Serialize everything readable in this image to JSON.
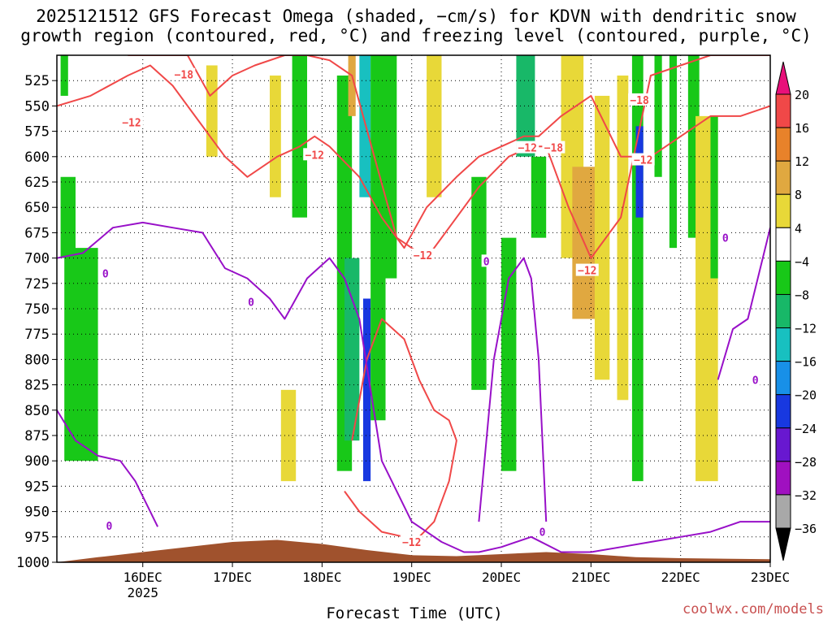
{
  "title_line1": "2025121512 GFS Forecast Omega (shaded, −cm/s) for KDVN with dendritic snow",
  "title_line2": "growth region (contoured, red, °C) and freezing level (contoured, purple, °C)",
  "credit": "coolwx.com/models",
  "chart_data": {
    "type": "heatmap",
    "title": "2025121512 GFS Forecast Omega (shaded, −cm/s) for KDVN with dendritic snow growth region (contoured, red, °C) and freezing level (contoured, purple, °C)",
    "xlabel": "Forecast Time (UTC)",
    "ylabel": "",
    "x_ticks": [
      "16DEC",
      "17DEC",
      "18DEC",
      "19DEC",
      "20DEC",
      "21DEC",
      "22DEC",
      "23DEC"
    ],
    "x_year_label": "2025",
    "xlim_hours": [
      -11,
      180
    ],
    "y_ticks": [
      525,
      550,
      575,
      600,
      625,
      650,
      675,
      700,
      725,
      750,
      775,
      800,
      825,
      850,
      875,
      900,
      925,
      950,
      975,
      1000
    ],
    "ylim": [
      500,
      1000
    ],
    "colorbar": {
      "tick_labels": [
        "20",
        "16",
        "12",
        "8",
        "4",
        "−4",
        "−8",
        "−12",
        "−16",
        "−20",
        "−24",
        "−28",
        "−32",
        "−36"
      ],
      "bins": [
        {
          "range": "> 20",
          "color": "#e8107a"
        },
        {
          "range": "16 to 20",
          "color": "#f04848"
        },
        {
          "range": "12 to 16",
          "color": "#e8822a"
        },
        {
          "range": "8 to 12",
          "color": "#e0a840"
        },
        {
          "range": "4 to 8",
          "color": "#e8d838"
        },
        {
          "range": "-4 to 4",
          "color": "#ffffff"
        },
        {
          "range": "-8 to -4",
          "color": "#18c818"
        },
        {
          "range": "-12 to -8",
          "color": "#18b868"
        },
        {
          "range": "-16 to -12",
          "color": "#18c0c0"
        },
        {
          "range": "-20 to -16",
          "color": "#1890e8"
        },
        {
          "range": "-24 to -20",
          "color": "#1838e0"
        },
        {
          "range": "-28 to -24",
          "color": "#6818d0"
        },
        {
          "range": "-32 to -28",
          "color": "#a010c0"
        },
        {
          "range": "-36 to -32",
          "color": "#a8a8a8"
        },
        {
          "range": "< -36",
          "color": "#000000"
        }
      ]
    },
    "shaded_regions": [
      {
        "t": [
          -10,
          -8
        ],
        "p": [
          500,
          540
        ],
        "value": -6
      },
      {
        "t": [
          -9,
          0
        ],
        "p": [
          690,
          900
        ],
        "value": -6
      },
      {
        "t": [
          -10,
          -6
        ],
        "p": [
          620,
          700
        ],
        "value": -6
      },
      {
        "t": [
          29,
          32
        ],
        "p": [
          510,
          600
        ],
        "value": 6
      },
      {
        "t": [
          46,
          49
        ],
        "p": [
          520,
          640
        ],
        "value": 6
      },
      {
        "t": [
          49,
          53
        ],
        "p": [
          830,
          920
        ],
        "value": 6
      },
      {
        "t": [
          52,
          56
        ],
        "p": [
          500,
          660
        ],
        "value": -6
      },
      {
        "t": [
          64,
          68
        ],
        "p": [
          520,
          910
        ],
        "value": -6
      },
      {
        "t": [
          67,
          69
        ],
        "p": [
          500,
          560
        ],
        "value": 10
      },
      {
        "t": [
          66,
          70
        ],
        "p": [
          700,
          880
        ],
        "value": -10
      },
      {
        "t": [
          70,
          73
        ],
        "p": [
          500,
          640
        ],
        "value": -14
      },
      {
        "t": [
          71,
          73
        ],
        "p": [
          740,
          920
        ],
        "value": -22
      },
      {
        "t": [
          73,
          77
        ],
        "p": [
          500,
          860
        ],
        "value": -6
      },
      {
        "t": [
          76,
          80
        ],
        "p": [
          500,
          720
        ],
        "value": -6
      },
      {
        "t": [
          88,
          92
        ],
        "p": [
          500,
          640
        ],
        "value": 6
      },
      {
        "t": [
          100,
          104
        ],
        "p": [
          620,
          830
        ],
        "value": -6
      },
      {
        "t": [
          108,
          112
        ],
        "p": [
          680,
          910
        ],
        "value": -6
      },
      {
        "t": [
          112,
          117
        ],
        "p": [
          500,
          600
        ],
        "value": -12
      },
      {
        "t": [
          116,
          120
        ],
        "p": [
          600,
          680
        ],
        "value": -6
      },
      {
        "t": [
          124,
          130
        ],
        "p": [
          500,
          700
        ],
        "value": 6
      },
      {
        "t": [
          127,
          134
        ],
        "p": [
          610,
          760
        ],
        "value": 10
      },
      {
        "t": [
          133,
          137
        ],
        "p": [
          540,
          820
        ],
        "value": 6
      },
      {
        "t": [
          139,
          142
        ],
        "p": [
          520,
          840
        ],
        "value": 6
      },
      {
        "t": [
          143,
          146
        ],
        "p": [
          500,
          920
        ],
        "value": -6
      },
      {
        "t": [
          144,
          146
        ],
        "p": [
          570,
          660
        ],
        "value": -22
      },
      {
        "t": [
          149,
          151
        ],
        "p": [
          500,
          620
        ],
        "value": -6
      },
      {
        "t": [
          153,
          155
        ],
        "p": [
          500,
          690
        ],
        "value": -6
      },
      {
        "t": [
          158,
          161
        ],
        "p": [
          500,
          680
        ],
        "value": -6
      },
      {
        "t": [
          160,
          166
        ],
        "p": [
          560,
          920
        ],
        "value": 6
      },
      {
        "t": [
          164,
          166
        ],
        "p": [
          560,
          720
        ],
        "value": -6
      }
    ],
    "dendritic_contours": [
      {
        "label": "-12",
        "t": [
          -11,
          -2,
          8,
          14,
          20,
          26,
          34,
          40,
          48,
          54,
          58,
          62,
          70,
          76,
          82,
          88,
          96,
          102,
          108,
          114,
          118,
          124,
          132,
          140,
          148,
          156,
          164,
          172,
          180
        ],
        "p": [
          550,
          540,
          520,
          510,
          530,
          560,
          600,
          620,
          600,
          590,
          580,
          590,
          620,
          660,
          690,
          650,
          620,
          600,
          590,
          580,
          580,
          560,
          540,
          600,
          600,
          580,
          560,
          560,
          550
        ]
      },
      {
        "label": "-18",
        "t": [
          8,
          16,
          24,
          30,
          36,
          42,
          50,
          56,
          62,
          68,
          74,
          80,
          88,
          94,
          102,
          110,
          116,
          120,
          126,
          132,
          140,
          148,
          156,
          164,
          172,
          180
        ],
        "p": [
          500,
          500,
          500,
          540,
          520,
          510,
          500,
          500,
          505,
          520,
          600,
          680,
          700,
          670,
          630,
          600,
          590,
          590,
          650,
          700,
          660,
          520,
          510,
          500,
          500,
          500
        ]
      },
      {
        "label": "-12",
        "t": [
          66,
          70,
          76,
          82,
          86,
          90,
          94,
          96,
          94,
          90,
          86,
          82,
          76,
          72,
          68
        ],
        "p": [
          930,
          950,
          970,
          975,
          975,
          960,
          920,
          880,
          860,
          850,
          820,
          780,
          760,
          800,
          880
        ]
      }
    ],
    "freezing_contours": [
      {
        "label": "0",
        "t": [
          -11,
          -4,
          4,
          12,
          20,
          28,
          34,
          40,
          46,
          50,
          56,
          62,
          66,
          70,
          76,
          84,
          92,
          98,
          102,
          108,
          116,
          124,
          132,
          140,
          148,
          156,
          164,
          172,
          178,
          180
        ],
        "p": [
          700,
          695,
          670,
          665,
          670,
          675,
          710,
          720,
          740,
          760,
          720,
          700,
          720,
          760,
          900,
          960,
          980,
          990,
          990,
          985,
          975,
          990,
          990,
          985,
          980,
          975,
          970,
          960,
          960,
          960
        ]
      },
      {
        "label": "0",
        "t": [
          -11,
          -6,
          0,
          6,
          10,
          14,
          16
        ],
        "p": [
          850,
          880,
          895,
          900,
          920,
          950,
          965
        ]
      },
      {
        "label": "0",
        "t": [
          102,
          104,
          106,
          108,
          110,
          112,
          114,
          116,
          118,
          120
        ],
        "p": [
          960,
          880,
          800,
          760,
          720,
          710,
          700,
          720,
          800,
          960
        ]
      },
      {
        "label": "0",
        "t": [
          166,
          170,
          174,
          178,
          180
        ],
        "p": [
          820,
          770,
          760,
          700,
          670
        ]
      }
    ],
    "terrain_top_pressure": [
      1000,
      995,
      990,
      985,
      980,
      978,
      982,
      988,
      993,
      994,
      992,
      990,
      992,
      995,
      996,
      997
    ],
    "terrain_t": [
      -11,
      0,
      12,
      24,
      36,
      48,
      60,
      72,
      84,
      96,
      108,
      120,
      132,
      144,
      156,
      180
    ],
    "contour_labels": [
      {
        "text": "-18",
        "t": 23,
        "p": 519
      },
      {
        "text": "-12",
        "t": 9,
        "p": 566
      },
      {
        "text": "-12",
        "t": 58,
        "p": 598
      },
      {
        "text": "-12",
        "t": 87,
        "p": 697
      },
      {
        "text": "-12",
        "t": 115,
        "p": 591
      },
      {
        "text": "-18",
        "t": 122,
        "p": 591
      },
      {
        "text": "-18",
        "t": 145,
        "p": 544
      },
      {
        "text": "-12",
        "t": 146,
        "p": 603
      },
      {
        "text": "-12",
        "t": 131,
        "p": 712
      },
      {
        "text": "-12",
        "t": 84,
        "p": 980
      },
      {
        "text": "0",
        "t": 2,
        "p": 715
      },
      {
        "text": "0",
        "t": 41,
        "p": 743
      },
      {
        "text": "0",
        "t": 104,
        "p": 703
      },
      {
        "text": "0",
        "t": 119,
        "p": 970
      },
      {
        "text": "0",
        "t": 176,
        "p": 820
      },
      {
        "text": "0",
        "t": 168,
        "p": 680
      },
      {
        "text": "0",
        "t": 3,
        "p": 964
      }
    ]
  }
}
